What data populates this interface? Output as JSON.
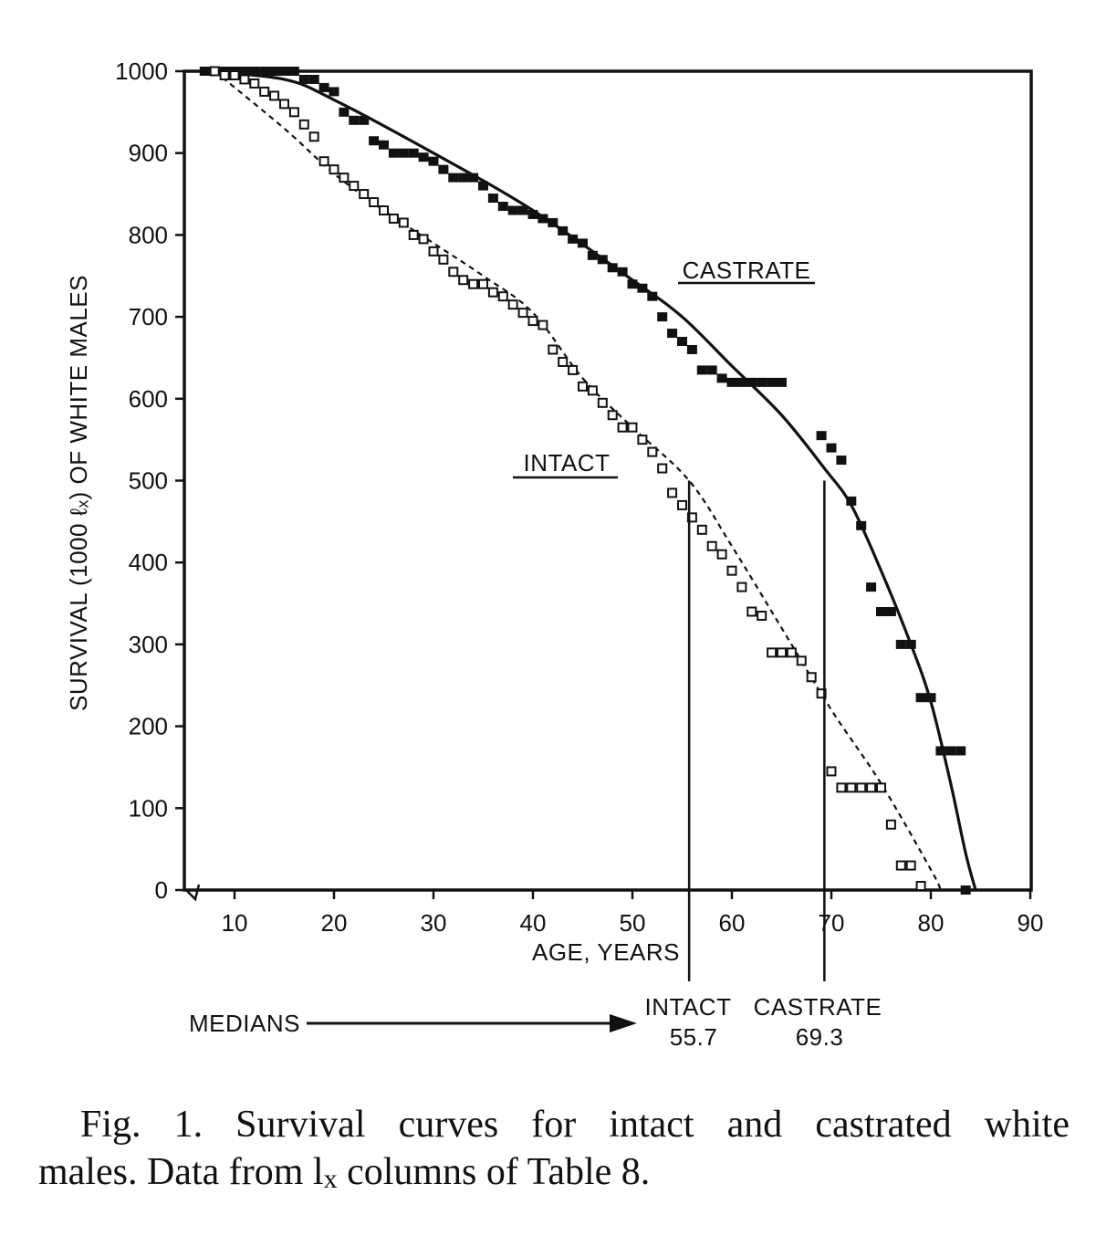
{
  "chart_data": {
    "type": "scatter",
    "title": "",
    "xlabel": "AGE, YEARS",
    "ylabel": "SURVIVAL (1000 ℓₓ) OF WHITE MALES",
    "xlim": [
      5,
      90
    ],
    "ylim": [
      0,
      1000
    ],
    "x_ticks": [
      "10",
      "20",
      "30",
      "40",
      "50",
      "60",
      "70",
      "80",
      "90"
    ],
    "y_ticks": [
      "0",
      "100",
      "200",
      "300",
      "400",
      "500",
      "600",
      "700",
      "800",
      "900",
      "1000"
    ],
    "series_labels": {
      "castrate": "CASTRATE",
      "intact": "INTACT"
    },
    "medians_label": "MEDIANS",
    "medians": [
      {
        "name": "INTACT",
        "value": 55.7,
        "value_label": "55.7"
      },
      {
        "name": "CASTRATE",
        "value": 69.3,
        "value_label": "69.3"
      }
    ],
    "series": [
      {
        "name": "Castrate (observed)",
        "marker": "filled-square",
        "points": [
          [
            7,
            1000
          ],
          [
            8,
            1000
          ],
          [
            9,
            1000
          ],
          [
            10,
            1000
          ],
          [
            11,
            1000
          ],
          [
            12,
            1000
          ],
          [
            13,
            1000
          ],
          [
            14,
            1000
          ],
          [
            15,
            1000
          ],
          [
            16,
            1000
          ],
          [
            17,
            990
          ],
          [
            18,
            990
          ],
          [
            19,
            980
          ],
          [
            20,
            975
          ],
          [
            21,
            950
          ],
          [
            22,
            940
          ],
          [
            23,
            940
          ],
          [
            24,
            915
          ],
          [
            25,
            910
          ],
          [
            26,
            900
          ],
          [
            27,
            900
          ],
          [
            28,
            900
          ],
          [
            29,
            895
          ],
          [
            30,
            890
          ],
          [
            31,
            880
          ],
          [
            32,
            870
          ],
          [
            33,
            870
          ],
          [
            34,
            870
          ],
          [
            35,
            860
          ],
          [
            36,
            845
          ],
          [
            37,
            835
          ],
          [
            38,
            830
          ],
          [
            39,
            830
          ],
          [
            40,
            825
          ],
          [
            41,
            820
          ],
          [
            42,
            815
          ],
          [
            43,
            805
          ],
          [
            44,
            795
          ],
          [
            45,
            790
          ],
          [
            46,
            775
          ],
          [
            47,
            770
          ],
          [
            48,
            760
          ],
          [
            49,
            755
          ],
          [
            50,
            740
          ],
          [
            51,
            735
          ],
          [
            52,
            725
          ],
          [
            53,
            700
          ],
          [
            54,
            680
          ],
          [
            55,
            670
          ],
          [
            56,
            660
          ],
          [
            57,
            635
          ],
          [
            58,
            635
          ],
          [
            59,
            625
          ],
          [
            60,
            620
          ],
          [
            61,
            620
          ],
          [
            62,
            620
          ],
          [
            63,
            620
          ],
          [
            64,
            620
          ],
          [
            65,
            620
          ],
          [
            69,
            555
          ],
          [
            70,
            540
          ],
          [
            71,
            525
          ],
          [
            72,
            475
          ],
          [
            73,
            445
          ],
          [
            74,
            370
          ],
          [
            75,
            340
          ],
          [
            76,
            340
          ],
          [
            77,
            300
          ],
          [
            78,
            300
          ],
          [
            79,
            235
          ],
          [
            80,
            235
          ],
          [
            81,
            170
          ],
          [
            82,
            170
          ],
          [
            83,
            170
          ],
          [
            83.5,
            0
          ]
        ]
      },
      {
        "name": "Intact (observed)",
        "marker": "open-square",
        "points": [
          [
            8,
            1000
          ],
          [
            9,
            995
          ],
          [
            10,
            995
          ],
          [
            11,
            990
          ],
          [
            12,
            985
          ],
          [
            13,
            975
          ],
          [
            14,
            970
          ],
          [
            15,
            960
          ],
          [
            16,
            950
          ],
          [
            17,
            935
          ],
          [
            18,
            920
          ],
          [
            19,
            890
          ],
          [
            20,
            880
          ],
          [
            21,
            870
          ],
          [
            22,
            860
          ],
          [
            23,
            850
          ],
          [
            24,
            840
          ],
          [
            25,
            830
          ],
          [
            26,
            820
          ],
          [
            27,
            815
          ],
          [
            28,
            800
          ],
          [
            29,
            795
          ],
          [
            30,
            780
          ],
          [
            31,
            770
          ],
          [
            32,
            755
          ],
          [
            33,
            745
          ],
          [
            34,
            740
          ],
          [
            35,
            740
          ],
          [
            36,
            730
          ],
          [
            37,
            725
          ],
          [
            38,
            715
          ],
          [
            39,
            705
          ],
          [
            40,
            695
          ],
          [
            41,
            690
          ],
          [
            42,
            660
          ],
          [
            43,
            645
          ],
          [
            44,
            635
          ],
          [
            45,
            615
          ],
          [
            46,
            610
          ],
          [
            47,
            595
          ],
          [
            48,
            580
          ],
          [
            49,
            565
          ],
          [
            50,
            565
          ],
          [
            51,
            550
          ],
          [
            52,
            535
          ],
          [
            53,
            515
          ],
          [
            54,
            485
          ],
          [
            55,
            470
          ],
          [
            56,
            455
          ],
          [
            57,
            440
          ],
          [
            58,
            420
          ],
          [
            59,
            410
          ],
          [
            60,
            390
          ],
          [
            61,
            370
          ],
          [
            62,
            340
          ],
          [
            63,
            335
          ],
          [
            64,
            290
          ],
          [
            65,
            290
          ],
          [
            66,
            290
          ],
          [
            67,
            280
          ],
          [
            68,
            260
          ],
          [
            69,
            240
          ],
          [
            70,
            145
          ],
          [
            71,
            125
          ],
          [
            72,
            125
          ],
          [
            73,
            125
          ],
          [
            74,
            125
          ],
          [
            75,
            125
          ],
          [
            76,
            80
          ],
          [
            77,
            30
          ],
          [
            78,
            30
          ],
          [
            79,
            5
          ]
        ]
      },
      {
        "name": "Castrate (fitted)",
        "line": "solid",
        "points": [
          [
            7,
            1000
          ],
          [
            15,
            990
          ],
          [
            20,
            965
          ],
          [
            30,
            900
          ],
          [
            40,
            830
          ],
          [
            50,
            745
          ],
          [
            55,
            700
          ],
          [
            60,
            640
          ],
          [
            65,
            580
          ],
          [
            69.3,
            515
          ],
          [
            72,
            470
          ],
          [
            75,
            390
          ],
          [
            78,
            300
          ],
          [
            80,
            230
          ],
          [
            82,
            130
          ],
          [
            83.5,
            45
          ],
          [
            84.5,
            0
          ]
        ]
      },
      {
        "name": "Intact (fitted)",
        "line": "dashed",
        "points": [
          [
            8,
            1000
          ],
          [
            15,
            930
          ],
          [
            20,
            875
          ],
          [
            25,
            830
          ],
          [
            30,
            790
          ],
          [
            35,
            750
          ],
          [
            40,
            705
          ],
          [
            45,
            625
          ],
          [
            50,
            565
          ],
          [
            55.7,
            500
          ],
          [
            60,
            420
          ],
          [
            65,
            320
          ],
          [
            70,
            220
          ],
          [
            75,
            130
          ],
          [
            80,
            25
          ],
          [
            81,
            0
          ]
        ]
      }
    ]
  },
  "caption": {
    "line1": "Fig. 1. Survival curves for intact and castrated white",
    "line2_before": "males.  Data from l",
    "line2_sub": "x",
    "line2_after": " columns of Table 8."
  }
}
